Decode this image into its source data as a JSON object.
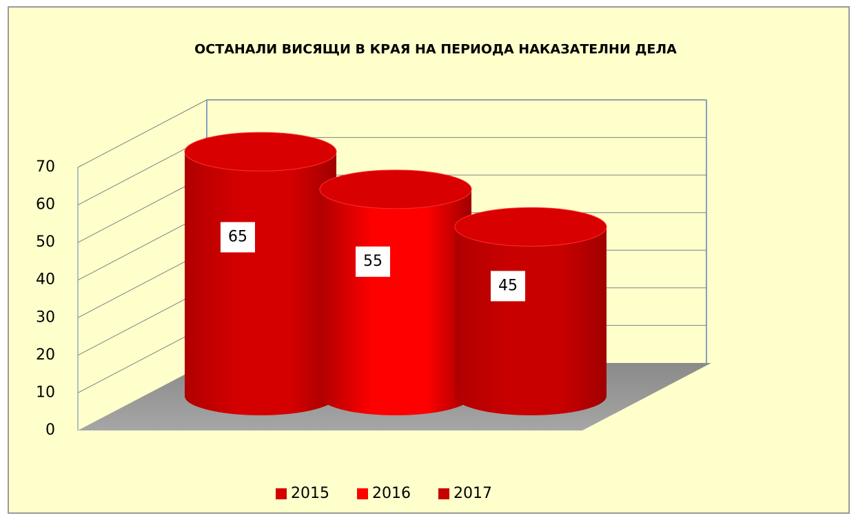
{
  "chart_data": {
    "type": "bar3d",
    "title": "ОСТАНАЛИ ВИСЯЩИ В КРАЯ НА ПЕРИОДА НАКАЗАТЕЛНИ ДЕЛА",
    "series": [
      {
        "name": "2015",
        "color": "#d40000",
        "values": [
          65
        ]
      },
      {
        "name": "2016",
        "color": "#ff0000",
        "values": [
          55
        ]
      },
      {
        "name": "2017",
        "color": "#c80000",
        "values": [
          45
        ]
      }
    ],
    "ylim": [
      0,
      70
    ],
    "yticks": [
      0,
      10,
      20,
      30,
      40,
      50,
      60,
      70
    ],
    "grid": true,
    "legend": "bottom"
  }
}
